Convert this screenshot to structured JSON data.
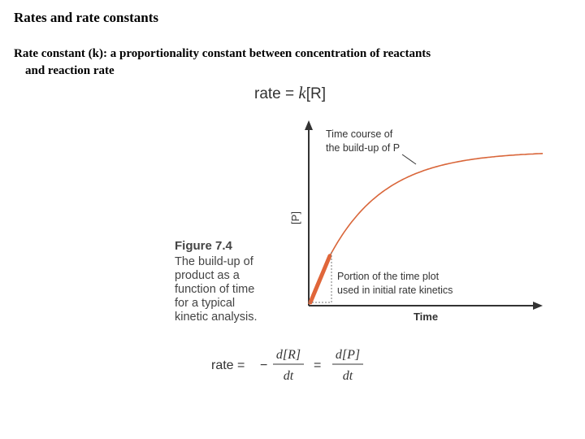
{
  "slide": {
    "title": "Rates and rate constants",
    "definition_line1": "Rate constant (k): a proportionality constant between concentration of reactants",
    "definition_line2": "and reaction rate"
  },
  "equation_top": {
    "lhs": "rate = ",
    "k": "k",
    "rhs": "[R]"
  },
  "figure": {
    "label": "Figure 7.4",
    "caption": "The build-up of product as a function of time for a typical kinetic analysis."
  },
  "chart_data": {
    "type": "line",
    "title": "",
    "xlabel": "Time",
    "ylabel": "[P]",
    "series": [
      {
        "type": "exponential-rise",
        "color": "#d9663a"
      }
    ],
    "annotations": [
      {
        "line1": "Time course of",
        "line2": "the build-up of P"
      },
      {
        "line1": "Portion of the time plot",
        "line2": "used in initial rate kinetics"
      }
    ],
    "highlight_color": "#e0663a",
    "grid": false
  },
  "equation_bottom": {
    "rate": "rate =",
    "minus": "−",
    "num1": "d[R]",
    "den1": "dt",
    "eq": "=",
    "num2": "d[P]",
    "den2": "dt"
  }
}
